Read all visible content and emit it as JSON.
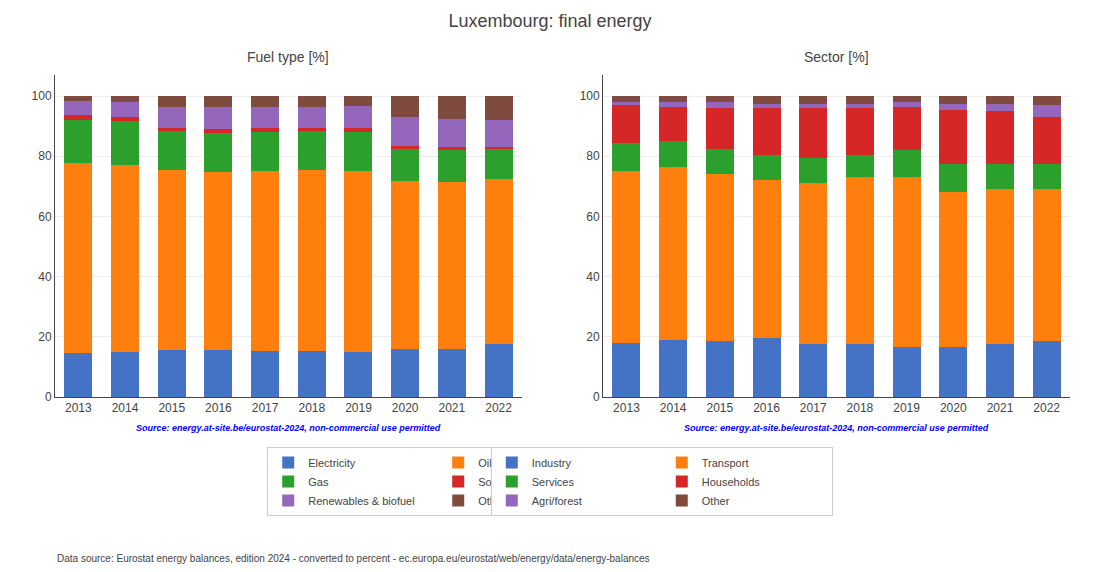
{
  "title": "Luxembourg: final energy",
  "annotations": [
    "Data source: Eurostat energy balances, edition 2024 - converted to percent - ec.europa.eu/eurostat/web/energy/data/energy-balances"
  ],
  "chart_data": [
    {
      "type": "bar",
      "stacked": true,
      "title": "Fuel type [%]",
      "categories": [
        "2013",
        "2014",
        "2015",
        "2016",
        "2017",
        "2018",
        "2019",
        "2020",
        "2021",
        "2022"
      ],
      "series": [
        {
          "name": "Electricity",
          "color": "#4472c4",
          "values": [
            14.5,
            14.8,
            15.5,
            15.5,
            15.3,
            15.2,
            14.8,
            15.9,
            16.0,
            17.5
          ]
        },
        {
          "name": "Oil/petrol",
          "color": "#ff7f0e",
          "values": [
            63.2,
            62.4,
            59.8,
            59.3,
            59.8,
            60.2,
            60.2,
            56.0,
            55.5,
            55.0
          ]
        },
        {
          "name": "Gas",
          "color": "#2ca02c",
          "values": [
            14.5,
            14.5,
            13.0,
            13.0,
            13.0,
            13.0,
            13.0,
            10.5,
            10.5,
            10.0
          ]
        },
        {
          "name": "Solid fossil",
          "color": "#d62728",
          "values": [
            1.5,
            1.3,
            1.2,
            1.2,
            1.2,
            1.0,
            1.3,
            1.0,
            1.0,
            0.5
          ]
        },
        {
          "name": "Renewables & biofuel",
          "color": "#9467bd",
          "values": [
            4.5,
            5.0,
            7.0,
            7.5,
            7.0,
            7.0,
            7.5,
            9.5,
            9.5,
            9.0
          ]
        },
        {
          "name": "Other",
          "color": "#7f4b3e",
          "values": [
            1.8,
            2.0,
            3.5,
            3.5,
            3.7,
            3.6,
            3.2,
            7.1,
            7.5,
            8.0
          ]
        }
      ],
      "ylim": [
        0,
        107
      ],
      "yticks": [
        0,
        20,
        40,
        60,
        80,
        100
      ],
      "grid": true,
      "legend": "bottom",
      "annotations": [
        "Source: energy.at-site.be/eurostat-2024, non-commercial use permitted"
      ]
    },
    {
      "type": "bar",
      "stacked": true,
      "title": "Sector [%]",
      "categories": [
        "2013",
        "2014",
        "2015",
        "2016",
        "2017",
        "2018",
        "2019",
        "2020",
        "2021",
        "2022"
      ],
      "series": [
        {
          "name": "Industry",
          "color": "#4472c4",
          "values": [
            18.0,
            19.0,
            18.5,
            19.5,
            17.5,
            17.5,
            16.5,
            16.5,
            17.5,
            18.5
          ]
        },
        {
          "name": "Transport",
          "color": "#ff7f0e",
          "values": [
            57.0,
            57.5,
            55.5,
            52.5,
            53.5,
            55.5,
            56.5,
            51.5,
            51.5,
            50.5
          ]
        },
        {
          "name": "Services",
          "color": "#2ca02c",
          "values": [
            9.5,
            8.5,
            8.5,
            8.5,
            8.5,
            7.5,
            9.0,
            9.5,
            8.5,
            8.5
          ]
        },
        {
          "name": "Households",
          "color": "#d62728",
          "values": [
            12.5,
            11.5,
            13.5,
            15.5,
            16.5,
            15.5,
            14.5,
            18.0,
            17.5,
            15.5
          ]
        },
        {
          "name": "Agri/forest",
          "color": "#9467bd",
          "values": [
            1.0,
            1.5,
            2.0,
            1.5,
            1.5,
            1.5,
            1.5,
            2.0,
            2.5,
            4.0
          ]
        },
        {
          "name": "Other",
          "color": "#7f4b3e",
          "values": [
            2.0,
            2.0,
            2.0,
            2.5,
            2.5,
            2.5,
            2.0,
            2.5,
            2.5,
            3.0
          ]
        }
      ],
      "ylim": [
        0,
        107
      ],
      "yticks": [
        0,
        20,
        40,
        60,
        80,
        100
      ],
      "grid": true,
      "legend": "bottom",
      "annotations": [
        "Source: energy.at-site.be/eurostat-2024, non-commercial use permitted"
      ]
    }
  ]
}
